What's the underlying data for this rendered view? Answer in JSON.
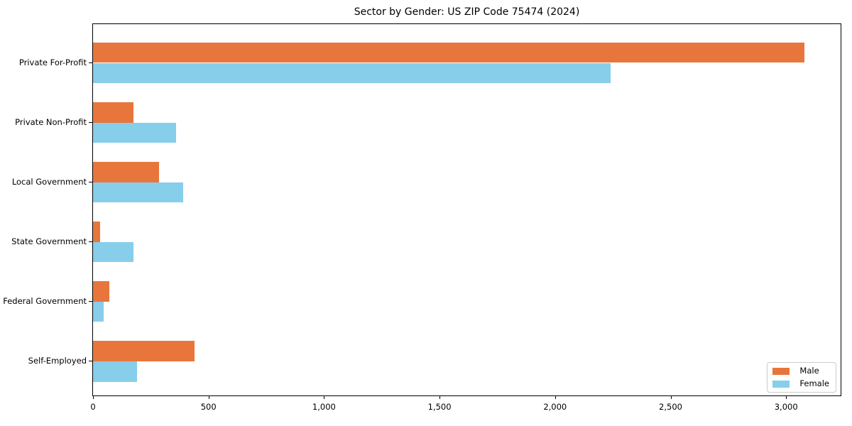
{
  "title": "Sector by Gender: US ZIP Code 75474 (2024)",
  "legend": {
    "items": [
      "Male",
      "Female"
    ],
    "position": "lower right"
  },
  "colors": {
    "male": "#E8763C",
    "female": "#87CEEB",
    "axis": "#000000",
    "legend_border": "#CCCCCC",
    "background": "#FFFFFF"
  },
  "chart_data": {
    "type": "bar",
    "orientation": "horizontal",
    "title": "Sector by Gender: US ZIP Code 75474 (2024)",
    "categories": [
      "Private For-Profit",
      "Private Non-Profit",
      "Local Government",
      "State Government",
      "Federal Government",
      "Self-Employed"
    ],
    "series": [
      {
        "name": "Male",
        "color": "#E8763C",
        "values": [
          3080,
          175,
          285,
          30,
          70,
          440
        ]
      },
      {
        "name": "Female",
        "color": "#87CEEB",
        "values": [
          2240,
          360,
          390,
          175,
          45,
          190
        ]
      }
    ],
    "xlabel": "",
    "ylabel": "",
    "xlim": [
      0,
      3236
    ],
    "xticks": [
      0,
      500,
      1000,
      1500,
      2000,
      2500,
      3000
    ],
    "xtick_labels": [
      "0",
      "500",
      "1,000",
      "1,500",
      "2,000",
      "2,500",
      "3,000"
    ],
    "grid": false,
    "legend_position": "lower right"
  }
}
